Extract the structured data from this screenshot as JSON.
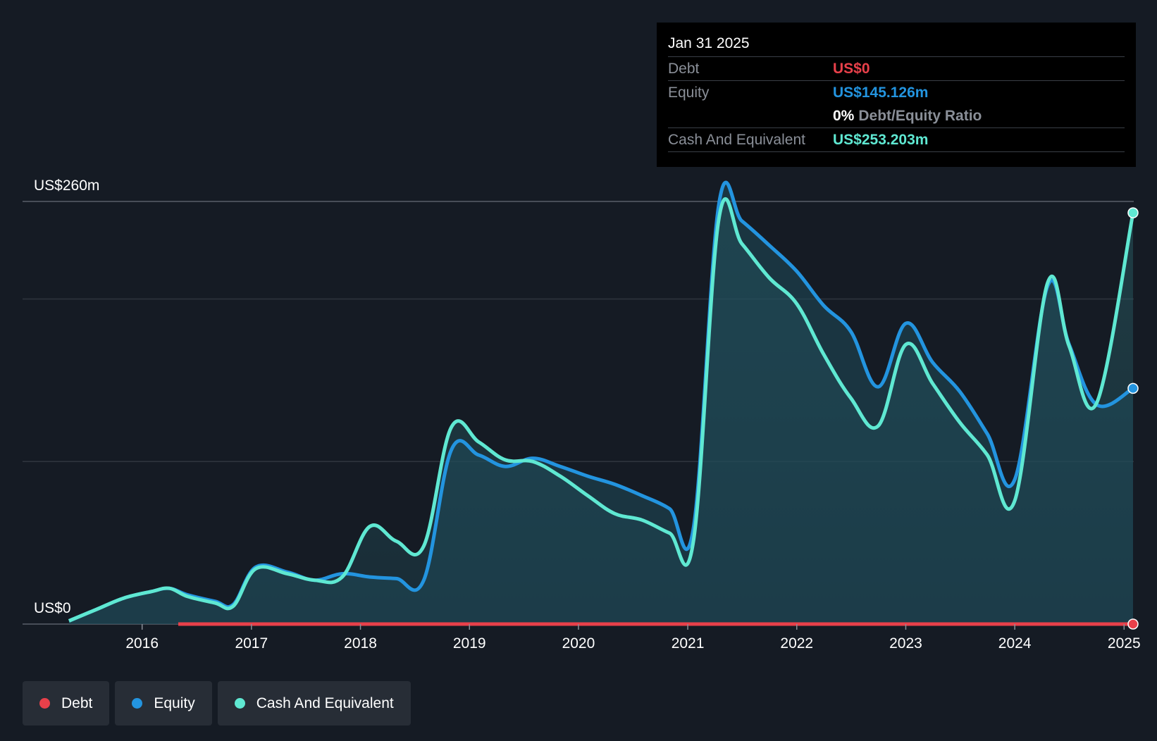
{
  "tooltip": {
    "date": "Jan 31 2025",
    "debt_label": "Debt",
    "debt_value": "US$0",
    "equity_label": "Equity",
    "equity_value": "US$145.126m",
    "ratio_value": "0%",
    "ratio_label": "Debt/Equity Ratio",
    "cash_label": "Cash And Equivalent",
    "cash_value": "US$253.203m"
  },
  "legend": [
    {
      "label": "Debt",
      "color": "#e8404a"
    },
    {
      "label": "Equity",
      "color": "#2394df"
    },
    {
      "label": "Cash And Equivalent",
      "color": "#5fe8d2"
    }
  ],
  "chart_data": {
    "type": "area",
    "x_axis_type": "date",
    "x_tick_labels": [
      "2016",
      "2017",
      "2018",
      "2019",
      "2020",
      "2021",
      "2022",
      "2023",
      "2024",
      "2025"
    ],
    "y_axis_labels": {
      "top": "US$260m",
      "bottom": "US$0"
    },
    "ylim": [
      0,
      260
    ],
    "xlim": [
      "2015-01-01",
      "2025-01-31"
    ],
    "grid": true,
    "legend_position": "bottom-left",
    "colors": {
      "debt": "#e8404a",
      "equity": "#2394df",
      "cash": "#5fe8d2"
    },
    "series": [
      {
        "name": "Equity",
        "points": [
          [
            "2015-05-01",
            2
          ],
          [
            "2015-08-01",
            9
          ],
          [
            "2015-11-01",
            16
          ],
          [
            "2016-02-01",
            20
          ],
          [
            "2016-04-01",
            22
          ],
          [
            "2016-06-01",
            18
          ],
          [
            "2016-09-01",
            14
          ],
          [
            "2016-11-01",
            12
          ],
          [
            "2017-01-15",
            35
          ],
          [
            "2017-05-01",
            32
          ],
          [
            "2017-08-01",
            27
          ],
          [
            "2017-11-01",
            31
          ],
          [
            "2018-02-01",
            29
          ],
          [
            "2018-05-01",
            28
          ],
          [
            "2018-08-01",
            27
          ],
          [
            "2018-11-01",
            107
          ],
          [
            "2019-02-01",
            104
          ],
          [
            "2019-05-01",
            97
          ],
          [
            "2019-08-01",
            102
          ],
          [
            "2019-11-01",
            97
          ],
          [
            "2020-02-01",
            91
          ],
          [
            "2020-05-01",
            86
          ],
          [
            "2020-08-01",
            79
          ],
          [
            "2020-11-01",
            71
          ],
          [
            "2021-01-20",
            59
          ],
          [
            "2021-04-15",
            258
          ],
          [
            "2021-07-01",
            248
          ],
          [
            "2021-10-01",
            233
          ],
          [
            "2022-01-01",
            217
          ],
          [
            "2022-04-01",
            196
          ],
          [
            "2022-07-01",
            180
          ],
          [
            "2022-10-01",
            146
          ],
          [
            "2023-01-01",
            185
          ],
          [
            "2023-04-01",
            161
          ],
          [
            "2023-07-01",
            143
          ],
          [
            "2023-10-01",
            117
          ],
          [
            "2024-01-01",
            89
          ],
          [
            "2024-04-20",
            208
          ],
          [
            "2024-07-01",
            172
          ],
          [
            "2024-10-01",
            135
          ],
          [
            "2025-01-31",
            145
          ]
        ]
      },
      {
        "name": "Cash And Equivalent",
        "points": [
          [
            "2015-05-01",
            2
          ],
          [
            "2015-08-01",
            9
          ],
          [
            "2015-11-01",
            16
          ],
          [
            "2016-02-01",
            20
          ],
          [
            "2016-04-01",
            22
          ],
          [
            "2016-06-01",
            17
          ],
          [
            "2016-09-01",
            13
          ],
          [
            "2016-11-01",
            11
          ],
          [
            "2017-01-15",
            34
          ],
          [
            "2017-05-01",
            31
          ],
          [
            "2017-08-01",
            27
          ],
          [
            "2017-11-01",
            29
          ],
          [
            "2018-02-01",
            60
          ],
          [
            "2018-05-01",
            51
          ],
          [
            "2018-08-01",
            48
          ],
          [
            "2018-11-01",
            121
          ],
          [
            "2019-02-01",
            112
          ],
          [
            "2019-05-01",
            101
          ],
          [
            "2019-08-01",
            100
          ],
          [
            "2019-11-01",
            91
          ],
          [
            "2020-02-01",
            79
          ],
          [
            "2020-05-01",
            68
          ],
          [
            "2020-08-01",
            64
          ],
          [
            "2020-11-01",
            56
          ],
          [
            "2021-01-20",
            51
          ],
          [
            "2021-04-15",
            249
          ],
          [
            "2021-07-01",
            234
          ],
          [
            "2021-10-01",
            213
          ],
          [
            "2022-01-01",
            197
          ],
          [
            "2022-04-01",
            166
          ],
          [
            "2022-07-01",
            139
          ],
          [
            "2022-10-01",
            122
          ],
          [
            "2023-01-01",
            172
          ],
          [
            "2023-04-01",
            148
          ],
          [
            "2023-07-01",
            124
          ],
          [
            "2023-10-01",
            104
          ],
          [
            "2024-01-01",
            76
          ],
          [
            "2024-04-20",
            210
          ],
          [
            "2024-07-01",
            171
          ],
          [
            "2024-10-01",
            136
          ],
          [
            "2025-01-31",
            253
          ]
        ]
      },
      {
        "name": "Debt",
        "points": [
          [
            "2016-05-01",
            0
          ],
          [
            "2025-01-31",
            0
          ]
        ]
      }
    ]
  }
}
